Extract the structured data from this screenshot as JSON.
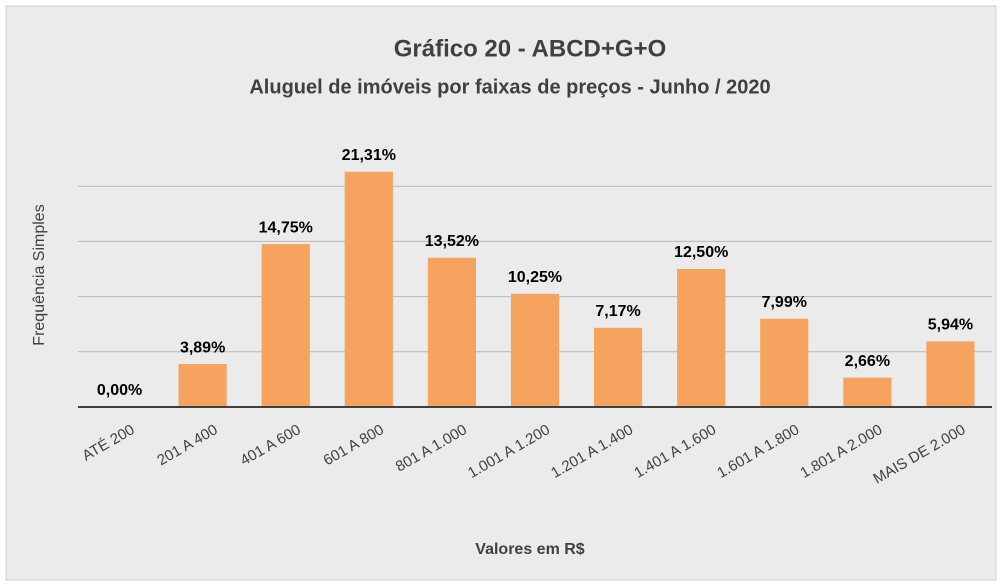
{
  "chart_data": {
    "type": "bar",
    "title": "Gráfico 20 - ABCD+G+O",
    "subtitle": "Aluguel de imóveis por faixas de preços - Junho / 2020",
    "x_label": "Valores em R$",
    "y_label": "Frequência Simples",
    "categories": [
      "ATÉ 200",
      "201 A 400",
      "401 A 600",
      "601 A 800",
      "801 A 1.000",
      "1.001 A 1.200",
      "1.201 A 1.400",
      "1.401 A 1.600",
      "1.601 A 1.800",
      "1.801 A 2.000",
      "MAIS DE 2.000"
    ],
    "values": [
      0,
      3.89,
      14.75,
      21.31,
      13.52,
      10.25,
      7.17,
      12.5,
      7.99,
      2.66,
      5.94
    ],
    "value_labels": [
      "0,00%",
      "3,89%",
      "14,75%",
      "21,31%",
      "13,52%",
      "10,25%",
      "7,17%",
      "12,50%",
      "7,99%",
      "2,66%",
      "5,94%"
    ],
    "color": "#f5a35e",
    "ylim": [
      0,
      25
    ],
    "yticks": [
      0,
      5,
      10,
      15,
      20
    ],
    "grid": true
  }
}
